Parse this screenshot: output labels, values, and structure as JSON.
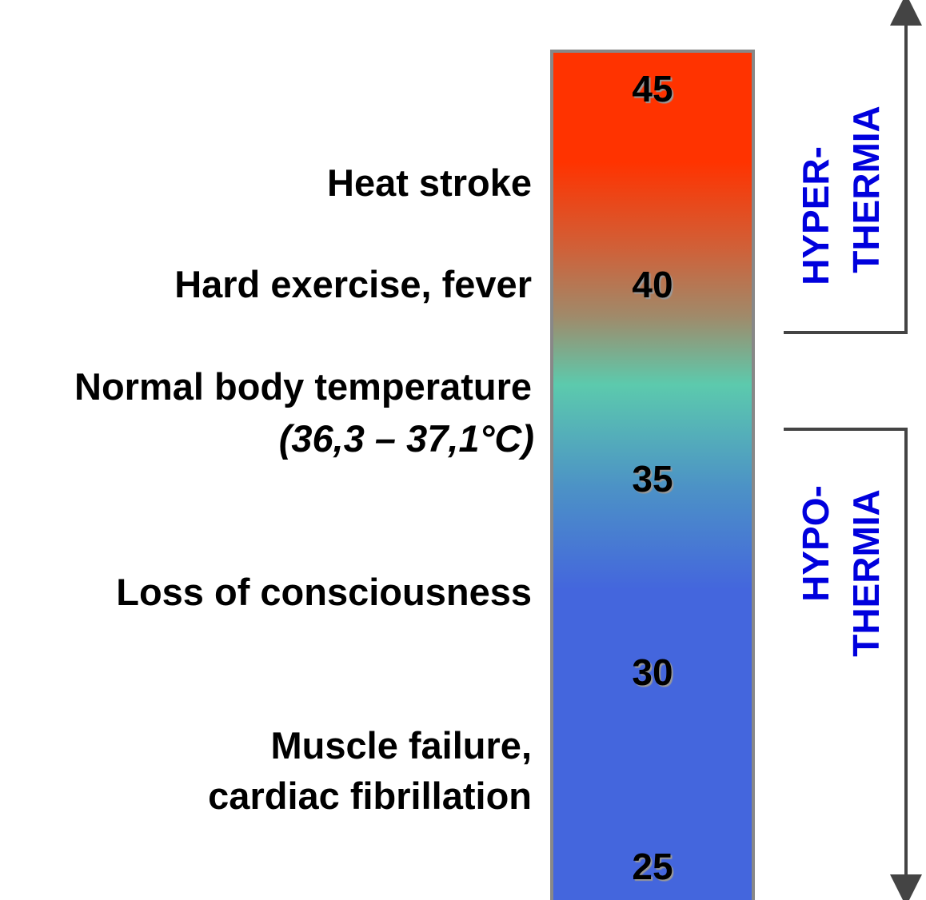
{
  "scale": [
    45,
    40,
    35,
    30,
    25
  ],
  "conditions": [
    "Heat stroke",
    "Hard exercise, fever",
    "Normal body temperature",
    "(36,3 – 37,1°C)",
    "Loss of consciousness",
    "Muscle failure,",
    "cardiac fibrillation"
  ],
  "ranges": {
    "hyper": [
      "HYPER-",
      "THERMIA"
    ],
    "hypo": [
      "HYPO-",
      "THERMIA"
    ]
  }
}
